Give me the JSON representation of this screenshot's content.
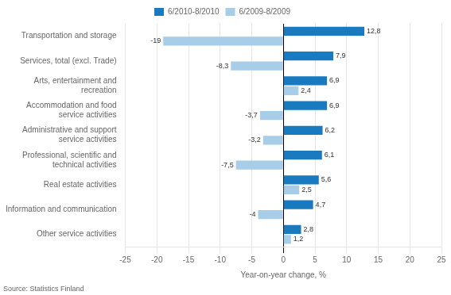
{
  "chart_data": {
    "type": "bar",
    "orientation": "horizontal",
    "categories": [
      "Transportation and storage",
      "Services, total (excl. Trade)",
      "Arts, entertainment and\nrecreation",
      "Accommodation and food\nservice activities",
      "Administrative and support\nservice activities",
      "Professional, scientific and\ntechnical activities",
      "Real estate activities",
      "Information and communication",
      "Other service activities"
    ],
    "series": [
      {
        "name": "6/2010-8/2010",
        "color": "#1a7abf",
        "values": [
          12.8,
          7.9,
          6.9,
          6.9,
          6.2,
          6.1,
          5.6,
          4.7,
          2.8
        ],
        "value_labels": [
          "12,8",
          "7,9",
          "6,9",
          "6,9",
          "6,2",
          "6,1",
          "5,6",
          "4,7",
          "2,8"
        ]
      },
      {
        "name": "6/2009-8/2009",
        "color": "#a8cde8",
        "values": [
          -19.0,
          -8.3,
          2.4,
          -3.7,
          -3.2,
          -7.5,
          2.5,
          -4.0,
          1.2
        ],
        "value_labels": [
          "-19",
          "-8,3",
          "2,4",
          "-3,7",
          "-3,2",
          "-7,5",
          "2,5",
          "-4",
          "1,2"
        ]
      }
    ],
    "xlabel": "Year-on-year change, %",
    "xlim": [
      -25,
      25
    ],
    "xticks": [
      -25,
      -20,
      -15,
      -10,
      -5,
      0,
      5,
      10,
      15,
      20,
      25
    ],
    "grid": true,
    "legend": "top",
    "data_labels": true,
    "annotations": [
      "Source: Statistics Finland"
    ]
  }
}
